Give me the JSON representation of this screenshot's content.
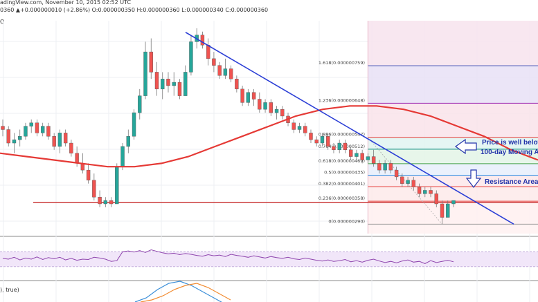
{
  "header": {
    "source_fragment": "adingView.com, November 10, 2015 02:52 UTC",
    "ohlc_fragment": "0360 ▲+0.000000010 (+2.86%) O:0.000000350 H:0.000000360 L:0.000000340 C:0.000000360",
    "symbol_fragment": "O",
    "indicator_fragment": "), true)"
  },
  "chart_data": {
    "type": "candlestick",
    "title": "",
    "xlabel": "",
    "ylabel": "",
    "ylim": [
      2.62e-07,
      8.8e-07
    ],
    "grid": true,
    "candles_ohlc": [
      [
        5.8e-07,
        6e-07,
        5.5e-07,
        5.7e-07
      ],
      [
        5.7e-07,
        5.8e-07,
        5.2e-07,
        5.3e-07
      ],
      [
        5.3e-07,
        5.6e-07,
        5e-07,
        5.4e-07
      ],
      [
        5.4e-07,
        5.7e-07,
        5.2e-07,
        5.5e-07
      ],
      [
        5.5e-07,
        5.9e-07,
        5.4e-07,
        5.8e-07
      ],
      [
        5.8e-07,
        6e-07,
        5.6e-07,
        5.9e-07
      ],
      [
        5.9e-07,
        6e-07,
        5.5e-07,
        5.6e-07
      ],
      [
        5.6e-07,
        5.9e-07,
        5.5e-07,
        5.8e-07
      ],
      [
        5.8e-07,
        5.9e-07,
        5.4e-07,
        5.5e-07
      ],
      [
        5.5e-07,
        5.6e-07,
        5.1e-07,
        5.2e-07
      ],
      [
        5.2e-07,
        5.7e-07,
        5e-07,
        5.6e-07
      ],
      [
        5.6e-07,
        5.7e-07,
        5.2e-07,
        5.3e-07
      ],
      [
        5.3e-07,
        5.4e-07,
        4.9e-07,
        5e-07
      ],
      [
        5e-07,
        5.2e-07,
        4.6e-07,
        4.7e-07
      ],
      [
        4.7e-07,
        5e-07,
        4.4e-07,
        4.5e-07
      ],
      [
        4.5e-07,
        4.7e-07,
        4.1e-07,
        4.2e-07
      ],
      [
        4.2e-07,
        4.4e-07,
        3.6e-07,
        3.7e-07
      ],
      [
        3.7e-07,
        3.9e-07,
        3.4e-07,
        3.5e-07
      ],
      [
        3.5e-07,
        3.7e-07,
        3.4e-07,
        3.6e-07
      ],
      [
        3.6e-07,
        3.7e-07,
        3.4e-07,
        3.5e-07
      ],
      [
        3.5e-07,
        4.7e-07,
        3.5e-07,
        4.6e-07
      ],
      [
        4.6e-07,
        5.3e-07,
        4.5e-07,
        5.2e-07
      ],
      [
        5.2e-07,
        5.7e-07,
        5e-07,
        5.5e-07
      ],
      [
        5.5e-07,
        6.3e-07,
        5.4e-07,
        6.2e-07
      ],
      [
        6.2e-07,
        6.9e-07,
        6e-07,
        6.7e-07
      ],
      [
        6.7e-07,
        8.3e-07,
        6.6e-07,
        8e-07
      ],
      [
        8e-07,
        8.4e-07,
        7.2e-07,
        7.4e-07
      ],
      [
        7.4e-07,
        7.7e-07,
        6.7e-07,
        6.9e-07
      ],
      [
        6.9e-07,
        7.4e-07,
        6.6e-07,
        7.2e-07
      ],
      [
        7.2e-07,
        7.4e-07,
        6.8e-07,
        7e-07
      ],
      [
        7e-07,
        7.4e-07,
        6.7e-07,
        7.1e-07
      ],
      [
        7.1e-07,
        7.2e-07,
        6.6e-07,
        6.7e-07
      ],
      [
        6.7e-07,
        7.6e-07,
        6.7e-07,
        7.4e-07
      ],
      [
        7.4e-07,
        8.5e-07,
        7.3e-07,
        8.3e-07
      ],
      [
        8.3e-07,
        8.7e-07,
        8.1e-07,
        8.5e-07
      ],
      [
        8.5e-07,
        8.6e-07,
        8.1e-07,
        8.2e-07
      ],
      [
        8.2e-07,
        8.4e-07,
        7.6e-07,
        7.8e-07
      ],
      [
        7.8e-07,
        8e-07,
        7.4e-07,
        7.6e-07
      ],
      [
        7.6e-07,
        7.7e-07,
        7.2e-07,
        7.3e-07
      ],
      [
        7.3e-07,
        7.8e-07,
        7.2e-07,
        7.5e-07
      ],
      [
        7.5e-07,
        7.6e-07,
        7.1e-07,
        7.2e-07
      ],
      [
        7.2e-07,
        7.3e-07,
        6.8e-07,
        6.9e-07
      ],
      [
        6.9e-07,
        7e-07,
        6.4e-07,
        6.5e-07
      ],
      [
        6.5e-07,
        6.9e-07,
        6.4e-07,
        6.8e-07
      ],
      [
        6.8e-07,
        6.9e-07,
        6.4e-07,
        6.6e-07
      ],
      [
        6.6e-07,
        6.8e-07,
        6.2e-07,
        6.3e-07
      ],
      [
        6.3e-07,
        6.6e-07,
        6.2e-07,
        6.5e-07
      ],
      [
        6.5e-07,
        6.6e-07,
        6.1e-07,
        6.2e-07
      ],
      [
        6.2e-07,
        6.4e-07,
        6e-07,
        6.3e-07
      ],
      [
        6.3e-07,
        6.4e-07,
        6e-07,
        6.1e-07
      ],
      [
        6.1e-07,
        6.2e-07,
        5.8e-07,
        5.9e-07
      ],
      [
        5.9e-07,
        6e-07,
        5.6e-07,
        5.7e-07
      ],
      [
        5.7e-07,
        5.9e-07,
        5.6e-07,
        5.8e-07
      ],
      [
        5.8e-07,
        5.9e-07,
        5.5e-07,
        5.6e-07
      ],
      [
        5.6e-07,
        5.7e-07,
        5.3e-07,
        5.4e-07
      ],
      [
        5.4e-07,
        5.5e-07,
        5.2e-07,
        5.3e-07
      ],
      [
        5.3e-07,
        5.6e-07,
        5.2e-07,
        5.5e-07
      ],
      [
        5.5e-07,
        5.6e-07,
        5.1e-07,
        5.2e-07
      ],
      [
        5.2e-07,
        5.3e-07,
        5e-07,
        5.1e-07
      ],
      [
        5.1e-07,
        5.4e-07,
        5e-07,
        5.3e-07
      ],
      [
        5.3e-07,
        5.4e-07,
        5e-07,
        5.1e-07
      ],
      [
        5.1e-07,
        5.2e-07,
        4.8e-07,
        4.9e-07
      ],
      [
        4.9e-07,
        5.1e-07,
        4.8e-07,
        5e-07
      ],
      [
        5e-07,
        5.1e-07,
        4.7e-07,
        4.8e-07
      ],
      [
        4.8e-07,
        5e-07,
        4.7e-07,
        4.9e-07
      ],
      [
        4.9e-07,
        5.1e-07,
        4.6e-07,
        4.7e-07
      ],
      [
        4.7e-07,
        4.8e-07,
        4.4e-07,
        4.5e-07
      ],
      [
        4.5e-07,
        4.8e-07,
        4.4e-07,
        4.7e-07
      ],
      [
        4.7e-07,
        4.8e-07,
        4.4e-07,
        4.5e-07
      ],
      [
        4.5e-07,
        4.6e-07,
        4.2e-07,
        4.3e-07
      ],
      [
        4.3e-07,
        4.4e-07,
        4e-07,
        4.1e-07
      ],
      [
        4.1e-07,
        4.3e-07,
        4e-07,
        4.2e-07
      ],
      [
        4.2e-07,
        4.3e-07,
        3.9e-07,
        4e-07
      ],
      [
        4e-07,
        4.1e-07,
        3.7e-07,
        3.8e-07
      ],
      [
        3.8e-07,
        4e-07,
        3.7e-07,
        3.9e-07
      ],
      [
        3.9e-07,
        4e-07,
        3.7e-07,
        3.8e-07
      ],
      [
        3.8e-07,
        3.9e-07,
        3.4e-07,
        3.5e-07
      ],
      [
        3.5e-07,
        3.6e-07,
        2.9e-07,
        3.1e-07
      ],
      [
        3.1e-07,
        3.6e-07,
        3.1e-07,
        3.5e-07
      ],
      [
        3.5e-07,
        3.6e-07,
        3.4e-07,
        3.6e-07
      ]
    ],
    "ma_100": [
      5e-07,
      4.9e-07,
      4.8e-07,
      4.7e-07,
      4.6e-07,
      4.6e-07,
      4.7e-07,
      4.9e-07,
      5.2e-07,
      5.5e-07,
      5.8e-07,
      6.1e-07,
      6.3e-07,
      6.4e-07,
      6.4e-07,
      6.3e-07,
      6.1e-07,
      5.8e-07,
      5.5e-07,
      5.1e-07,
      4.8e-07
    ],
    "fib_levels": [
      {
        "ratio": "1.618",
        "label": "1.618(0.000000759)",
        "value": 7.59e-07,
        "color": "#3f51b5"
      },
      {
        "ratio": "1.236",
        "label": "1.236(0.000000648)",
        "value": 6.48e-07,
        "color": "#9c27b0"
      },
      {
        "ratio": "0.886",
        "label": "0.886(0.000000547)",
        "value": 5.47e-07,
        "color": "#e53935"
      },
      {
        "ratio": "0.764",
        "label": "0.764(0.000000512)",
        "value": 5.12e-07,
        "color": "#00897b"
      },
      {
        "ratio": "0.618",
        "label": "0.618(0.000000469)",
        "value": 4.69e-07,
        "color": "#43a047"
      },
      {
        "ratio": "0.5",
        "label": "0.5(0.000000435)",
        "value": 4.35e-07,
        "color": "#1e88e5"
      },
      {
        "ratio": "0.382",
        "label": "0.382(0.000000401)",
        "value": 4.01e-07,
        "color": "#e53935"
      },
      {
        "ratio": "0.236",
        "label": "0.236(0.000000358)",
        "value": 3.58e-07,
        "color": "#e53935"
      },
      {
        "ratio": "0",
        "label": "0(0.000000290)",
        "value": 2.9e-07,
        "color": "#999999"
      }
    ],
    "support_line": 3.54e-07,
    "trendline": {
      "from": [
        8.58e-07,
        2.9e-07
      ],
      "note": "start value, end value at the right edge"
    },
    "annotations": [
      {
        "label": "Price is well below"
      },
      {
        "label": "100-day Moving A"
      },
      {
        "label": "Resistance Area"
      }
    ],
    "rsi": [
      52,
      50,
      55,
      48,
      53,
      50,
      56,
      49,
      54,
      51,
      55,
      48,
      52,
      47,
      50,
      49,
      55,
      53,
      50,
      44,
      46,
      70,
      72,
      69,
      73,
      68,
      75,
      71,
      67,
      64,
      66,
      62,
      65,
      63,
      60,
      58,
      62,
      59,
      61,
      57,
      63,
      60,
      58,
      55,
      59,
      56,
      53,
      57,
      54,
      52,
      55,
      51,
      49,
      53,
      50,
      47,
      45,
      48,
      44,
      46,
      49,
      43,
      46,
      42,
      47,
      50,
      45,
      41,
      44,
      40,
      45,
      48,
      42,
      44,
      38,
      46,
      41,
      44,
      47,
      43
    ],
    "rsi_range": [
      0,
      100
    ],
    "rsi_band": [
      30,
      70
    ],
    "macd": [
      0,
      0.2,
      0.6,
      0.9,
      1.0,
      0.8,
      0.5,
      0.2,
      -0.1
    ],
    "macd_signal": [
      0,
      0.1,
      0.3,
      0.6,
      0.8,
      0.9,
      0.7,
      0.4,
      0.1
    ]
  }
}
